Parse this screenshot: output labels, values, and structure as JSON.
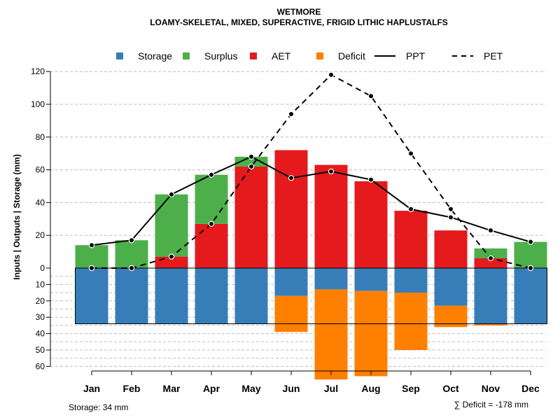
{
  "chart_data": {
    "type": "bar",
    "title": "WETMORE",
    "subtitle": "LOAMY-SKELETAL, MIXED, SUPERACTIVE, FRIGID LITHIC HAPLUSTALFS",
    "ylabel": "Inputs | Outputs | Storage    (mm)",
    "ylim_top": [
      0,
      120
    ],
    "ylim_bottom": [
      0,
      60
    ],
    "yticks_top": [
      "0",
      "20",
      "40",
      "60",
      "80",
      "100",
      "120"
    ],
    "yticks_bottom": [
      "10",
      "20",
      "30",
      "40",
      "50",
      "60"
    ],
    "categories": [
      "Jan",
      "Feb",
      "Mar",
      "Apr",
      "May",
      "Jun",
      "Jul",
      "Aug",
      "Sep",
      "Oct",
      "Nov",
      "Dec"
    ],
    "legend": [
      {
        "name": "Storage",
        "kind": "box",
        "color": "#377EB8"
      },
      {
        "name": "Surplus",
        "kind": "box",
        "color": "#4DAF4A"
      },
      {
        "name": "AET",
        "kind": "box",
        "color": "#E41A1C"
      },
      {
        "name": "Deficit",
        "kind": "box",
        "color": "#FF7F00"
      },
      {
        "name": "PPT",
        "kind": "solid",
        "color": "#000000"
      },
      {
        "name": "PET",
        "kind": "dashed",
        "color": "#000000"
      }
    ],
    "series": {
      "aet": [
        0,
        0,
        7,
        27,
        62,
        72,
        63,
        53,
        35,
        23,
        6,
        0
      ],
      "surplus": [
        14,
        17,
        38,
        30,
        6,
        0,
        0,
        0,
        0,
        0,
        6,
        16
      ],
      "storage": [
        34,
        34,
        34,
        34,
        34,
        17,
        13,
        14,
        15,
        23,
        34,
        34
      ],
      "deficit": [
        0,
        0,
        0,
        0,
        0,
        22,
        55,
        52,
        35,
        13,
        1,
        0
      ],
      "ppt": [
        14,
        17,
        45,
        57,
        68,
        55,
        59,
        54,
        36,
        31,
        23,
        16
      ],
      "pet": [
        0,
        0,
        7,
        27,
        62,
        94,
        118,
        105,
        70,
        36,
        6,
        0
      ]
    },
    "storage_capacity": 34,
    "storage_note": "Storage: 34 mm",
    "deficit_note": "∑ Deficit = -178 mm"
  }
}
